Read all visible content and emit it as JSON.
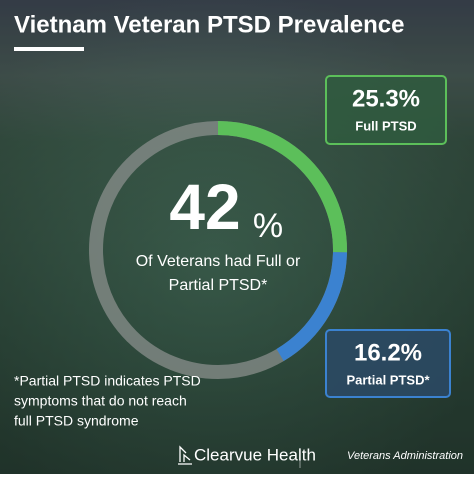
{
  "chart_data": {
    "type": "donut",
    "title": "Vietnam Veteran PTSD Prevalence",
    "center_value": 42,
    "center_unit": "%",
    "center_text": [
      "Of Veterans had Full or",
      "Partial PTSD*"
    ],
    "series": [
      {
        "name": "Full PTSD",
        "color": "#5cbf5a",
        "values": [
          25.3
        ],
        "value_labels": [
          "25.3%"
        ]
      },
      {
        "name": "Partial PTSD*",
        "color": "#3b82d0",
        "values": [
          16.2
        ],
        "value_labels": [
          "16.2%"
        ]
      }
    ],
    "footnote": [
      "*Partial PTSD indicates PTSD",
      "symptoms that do not reach",
      "full PTSD syndrome"
    ],
    "brand": "Clearvue Health",
    "source": "Veterans Administration"
  }
}
